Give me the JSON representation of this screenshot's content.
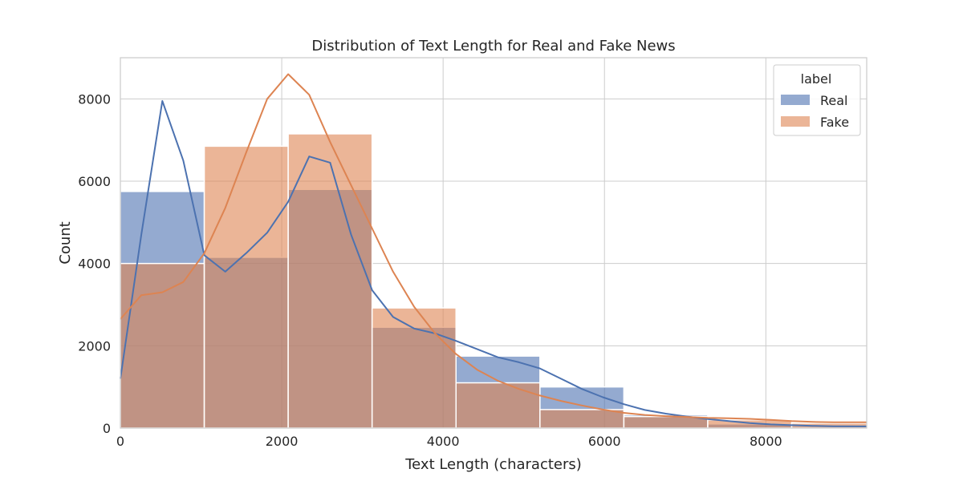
{
  "chart_data": {
    "type": "histogram",
    "title": "Distribution of Text Length for Real and Fake News",
    "xlabel": "Text Length (characters)",
    "ylabel": "Count",
    "xlim": [
      0,
      9250
    ],
    "ylim": [
      0,
      9000
    ],
    "xticks": [
      0,
      2000,
      4000,
      6000,
      8000
    ],
    "yticks": [
      0,
      2000,
      4000,
      6000,
      8000
    ],
    "xtick_labels": [
      "0",
      "2000",
      "4000",
      "6000",
      "8000"
    ],
    "ytick_labels": [
      "0",
      "2000",
      "4000",
      "6000",
      "8000"
    ],
    "grid": true,
    "legend": {
      "title": "label",
      "position": "top-right"
    },
    "bin_edges": [
      0,
      1040,
      2080,
      3120,
      4160,
      5200,
      6240,
      7280,
      8320,
      9250
    ],
    "series": [
      {
        "name": "Real",
        "color": "#4c72b0",
        "counts": [
          5750,
          4150,
          5800,
          2450,
          1750,
          1000,
          320,
          100,
          40
        ],
        "kde": [
          [
            0,
            1200
          ],
          [
            260,
            4700
          ],
          [
            520,
            7950
          ],
          [
            780,
            6500
          ],
          [
            1040,
            4200
          ],
          [
            1300,
            3800
          ],
          [
            1560,
            4250
          ],
          [
            1820,
            4750
          ],
          [
            2080,
            5500
          ],
          [
            2340,
            6600
          ],
          [
            2600,
            6450
          ],
          [
            2860,
            4700
          ],
          [
            3120,
            3350
          ],
          [
            3380,
            2700
          ],
          [
            3640,
            2420
          ],
          [
            3900,
            2300
          ],
          [
            4160,
            2120
          ],
          [
            4420,
            1920
          ],
          [
            4680,
            1720
          ],
          [
            4940,
            1600
          ],
          [
            5200,
            1450
          ],
          [
            5460,
            1200
          ],
          [
            5720,
            950
          ],
          [
            5980,
            750
          ],
          [
            6240,
            580
          ],
          [
            6500,
            440
          ],
          [
            6760,
            350
          ],
          [
            7020,
            280
          ],
          [
            7280,
            220
          ],
          [
            7540,
            170
          ],
          [
            7800,
            120
          ],
          [
            8060,
            90
          ],
          [
            8320,
            70
          ],
          [
            8580,
            55
          ],
          [
            8840,
            45
          ],
          [
            9250,
            40
          ]
        ]
      },
      {
        "name": "Fake",
        "color": "#dd8452",
        "counts": [
          4000,
          6850,
          7150,
          2920,
          1100,
          450,
          280,
          200,
          120
        ],
        "kde": [
          [
            0,
            2650
          ],
          [
            260,
            3230
          ],
          [
            520,
            3300
          ],
          [
            780,
            3550
          ],
          [
            1040,
            4250
          ],
          [
            1300,
            5350
          ],
          [
            1560,
            6700
          ],
          [
            1820,
            8000
          ],
          [
            2080,
            8600
          ],
          [
            2340,
            8100
          ],
          [
            2600,
            6950
          ],
          [
            2860,
            5900
          ],
          [
            3120,
            4850
          ],
          [
            3380,
            3800
          ],
          [
            3640,
            2950
          ],
          [
            3900,
            2300
          ],
          [
            4160,
            1800
          ],
          [
            4420,
            1420
          ],
          [
            4680,
            1150
          ],
          [
            4940,
            950
          ],
          [
            5200,
            790
          ],
          [
            5460,
            660
          ],
          [
            5720,
            550
          ],
          [
            5980,
            450
          ],
          [
            6240,
            370
          ],
          [
            6500,
            320
          ],
          [
            6760,
            290
          ],
          [
            7020,
            270
          ],
          [
            7280,
            250
          ],
          [
            7540,
            240
          ],
          [
            7800,
            225
          ],
          [
            8060,
            200
          ],
          [
            8320,
            170
          ],
          [
            8580,
            150
          ],
          [
            8840,
            140
          ],
          [
            9250,
            140
          ]
        ]
      }
    ]
  }
}
